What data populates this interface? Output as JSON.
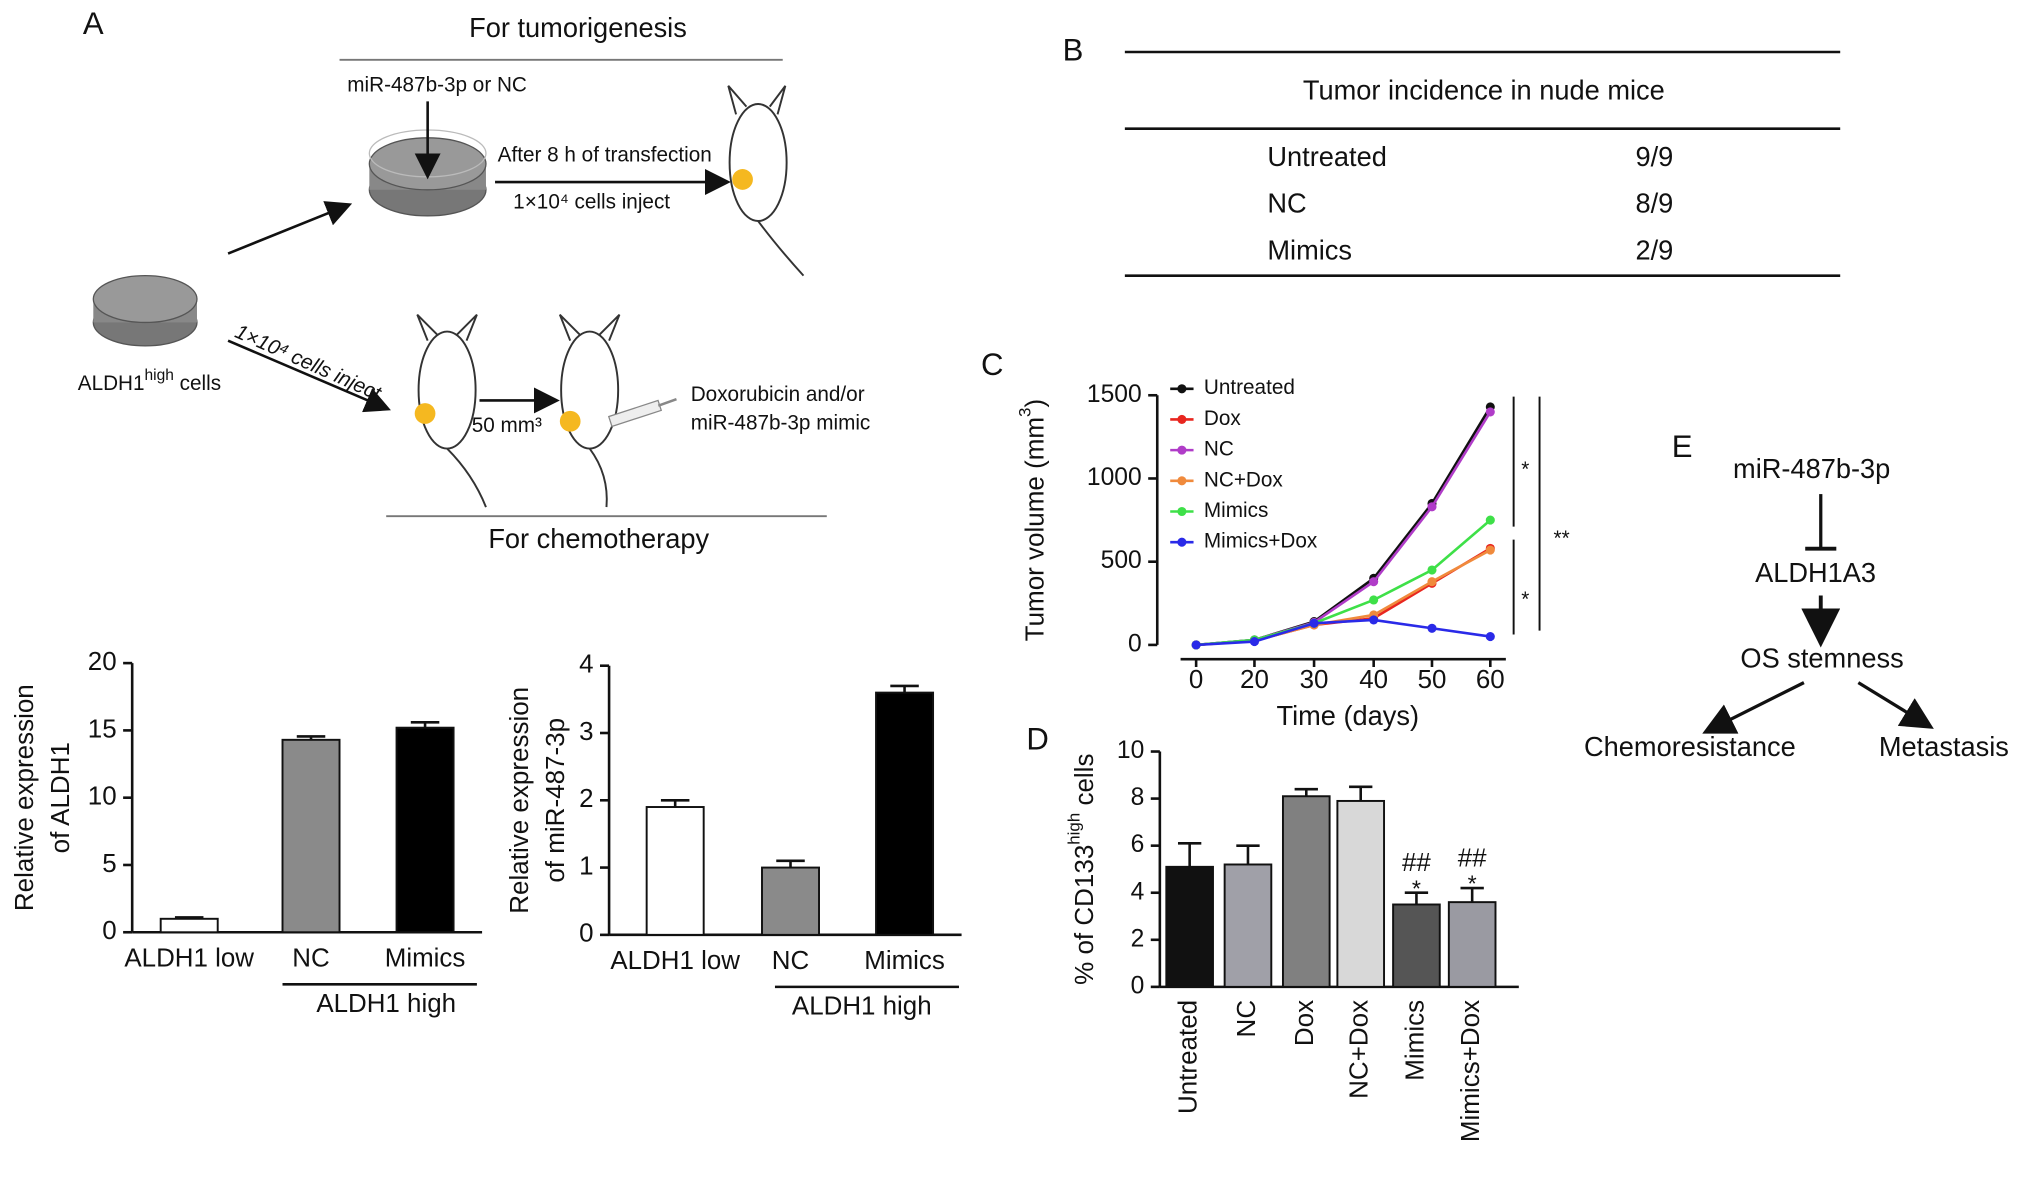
{
  "panels": {
    "letters": [
      "A",
      "B",
      "C",
      "D",
      "E"
    ]
  },
  "diagram_a": {
    "top_title": "For tumorigenesis",
    "transfect": "miR-487b-3p or NC",
    "after": "After 8 h of transfection",
    "inject_top": "1×10⁴ cells inject",
    "cells": "ALDH1",
    "cells_sup": "high",
    "cells_end": " cells",
    "inject_bottom": "1×10⁴ cells inject",
    "volume": "50 mm³",
    "drug_1": "Doxorubicin and/or",
    "drug_2": "miR-487b-3p mimic",
    "bottom_title": "For chemotherapy"
  },
  "table": {
    "title": "Tumor incidence in nude mice",
    "rows": [
      [
        "Untreated",
        "9/9"
      ],
      [
        "NC",
        "8/9"
      ],
      [
        "Mimics",
        "2/9"
      ]
    ]
  },
  "diagram_e": {
    "nodes": [
      "miR-487b-3p",
      "ALDH1A3",
      "OS stemness",
      "Chemoresistance",
      "Metastasis"
    ]
  },
  "chart_data": [
    {
      "type": "bar",
      "ylabel": [
        "Relative expression",
        "of ALDH1"
      ],
      "categories": [
        "ALDH1 low",
        "NC",
        "Mimics"
      ],
      "group_label": "ALDH1 high",
      "values": [
        1,
        14.3,
        15.2
      ],
      "errors": [
        0.1,
        0.25,
        0.4
      ],
      "colors": [
        "#ffffff",
        "#8a8a8a",
        "#000000"
      ],
      "ylim": [
        0,
        20
      ],
      "yticks": [
        0,
        5,
        10,
        15,
        20
      ]
    },
    {
      "type": "bar",
      "ylabel": [
        "Relative expression",
        "of miR-487-3p"
      ],
      "categories": [
        "ALDH1 low",
        "NC",
        "Mimics"
      ],
      "group_label": "ALDH1 high",
      "values": [
        1.9,
        1.0,
        3.6
      ],
      "errors": [
        0.1,
        0.1,
        0.1
      ],
      "colors": [
        "#ffffff",
        "#8a8a8a",
        "#000000"
      ],
      "ylim": [
        0,
        4
      ],
      "yticks": [
        0,
        1,
        2,
        3,
        4
      ]
    },
    {
      "type": "line",
      "ylabel": "Tumor volume (mm",
      "ylabel_sup": "3",
      "ylabel_end": ")",
      "xlabel": "Time (days)",
      "categories": [
        "0",
        "20",
        "30",
        "40",
        "50",
        "60"
      ],
      "series": [
        {
          "name": "Untreated",
          "color": "#111111",
          "values": [
            0,
            30,
            140,
            400,
            850,
            1430
          ]
        },
        {
          "name": "Dox",
          "color": "#e8261f",
          "values": [
            0,
            25,
            120,
            160,
            370,
            580
          ]
        },
        {
          "name": "NC",
          "color": "#b03cc8",
          "values": [
            0,
            30,
            135,
            380,
            830,
            1400
          ]
        },
        {
          "name": "NC+Dox",
          "color": "#f08a3c",
          "values": [
            0,
            25,
            120,
            180,
            380,
            570
          ]
        },
        {
          "name": "Mimics",
          "color": "#3ee048",
          "values": [
            0,
            30,
            130,
            270,
            450,
            750
          ]
        },
        {
          "name": "Mimics+Dox",
          "color": "#2a2ae8",
          "values": [
            0,
            20,
            130,
            150,
            100,
            50
          ]
        }
      ],
      "ylim": [
        0,
        1500
      ],
      "yticks": [
        0,
        500,
        1000,
        1500
      ],
      "annotations": [
        "*",
        "*",
        "**"
      ]
    },
    {
      "type": "bar",
      "ylabel": "% of CD133",
      "ylabel_sup": "high",
      "ylabel_end": " cells",
      "categories": [
        "Untreated",
        "NC",
        "Dox",
        "NC+Dox",
        "Mimics",
        "Mimics+Dox"
      ],
      "values": [
        5.1,
        5.2,
        8.1,
        7.9,
        3.5,
        3.6
      ],
      "errors": [
        1.0,
        0.8,
        0.3,
        0.6,
        0.5,
        0.6
      ],
      "colors": [
        "#111111",
        "#a0a0a8",
        "#808080",
        "#d8d8d8",
        "#555555",
        "#9a9aa2"
      ],
      "ylim": [
        0,
        10
      ],
      "yticks": [
        0,
        2,
        4,
        6,
        8,
        10
      ],
      "annotations": [
        "##",
        "*",
        "##",
        "*"
      ]
    }
  ]
}
